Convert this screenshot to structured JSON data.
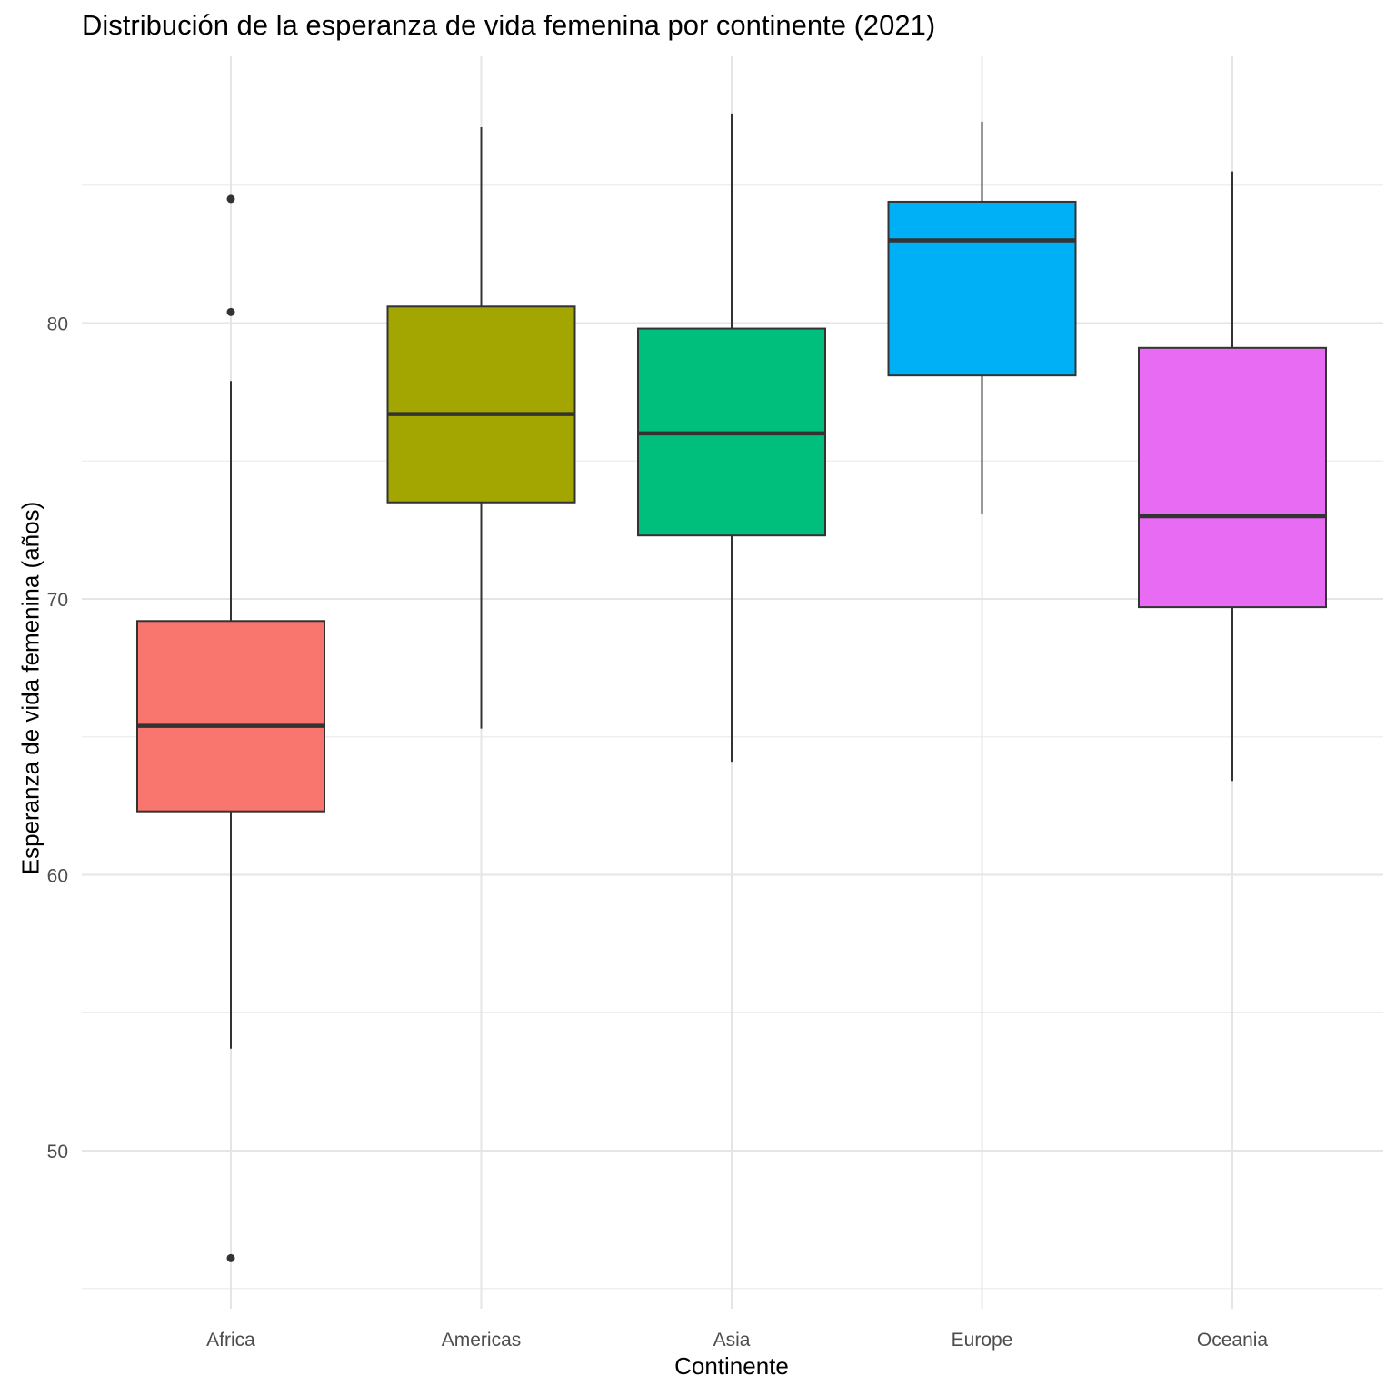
{
  "chart_data": {
    "type": "boxplot",
    "title": "Distribución de la esperanza de vida femenina por continente (2021)",
    "xlabel": "Continente",
    "ylabel": "Esperanza de vida femenina (años)",
    "ylim": [
      44.9,
      89.6
    ],
    "yticks": [
      50,
      60,
      70,
      80
    ],
    "y_minor_ticks": [
      45,
      55,
      65,
      75,
      85
    ],
    "categories": [
      "Africa",
      "Americas",
      "Asia",
      "Europe",
      "Oceania"
    ],
    "boxes": [
      {
        "name": "Africa",
        "whisker_low": 53.7,
        "q1": 62.3,
        "median": 65.4,
        "q3": 69.2,
        "whisker_high": 77.9,
        "outliers": [
          84.5,
          80.4,
          46.1
        ],
        "fill": "#F8766D"
      },
      {
        "name": "Americas",
        "whisker_low": 65.3,
        "q1": 73.5,
        "median": 76.7,
        "q3": 80.6,
        "whisker_high": 87.1,
        "outliers": [],
        "fill": "#A3A500"
      },
      {
        "name": "Asia",
        "whisker_low": 64.1,
        "q1": 72.3,
        "median": 76.0,
        "q3": 79.8,
        "whisker_high": 87.6,
        "outliers": [],
        "fill": "#00BF7D"
      },
      {
        "name": "Europe",
        "whisker_low": 73.1,
        "q1": 78.1,
        "median": 83.0,
        "q3": 84.4,
        "whisker_high": 87.3,
        "outliers": [],
        "fill": "#00B0F6"
      },
      {
        "name": "Oceania",
        "whisker_low": 63.4,
        "q1": 69.7,
        "median": 73.0,
        "q3": 79.1,
        "whisker_high": 85.5,
        "outliers": [],
        "fill": "#E76BF3"
      }
    ]
  }
}
